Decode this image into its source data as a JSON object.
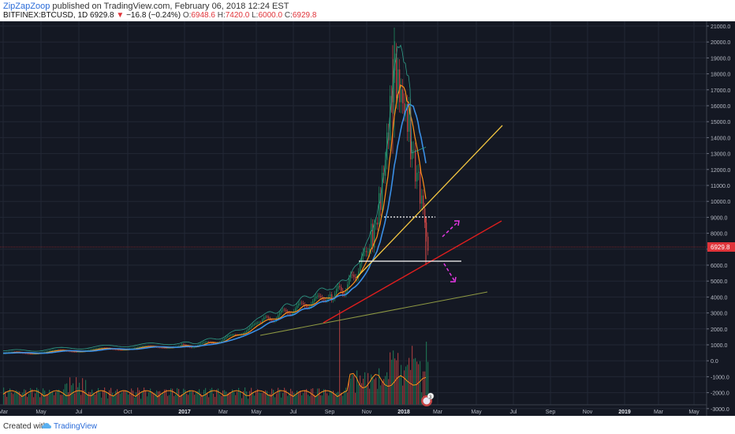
{
  "header": {
    "username": "ZipZapZoop",
    "published": "published on TradingView.com, February 06, 2018 12:24 EST",
    "symbol": "BITFINEX:BTCUSD, 1D",
    "last": "6929.8",
    "change": "−16.8 (−0.24%)",
    "o_label": "O:",
    "o_value": "6948.6",
    "h_label": "H:",
    "h_value": "7420.0",
    "l_label": "L:",
    "l_value": "6000.0",
    "c_label": "C:",
    "c_value": "6929.8"
  },
  "price_axis": {
    "labels": [
      "21000.0",
      "20000.0",
      "19000.0",
      "18000.0",
      "17000.0",
      "16000.0",
      "15000.0",
      "14000.0",
      "13000.0",
      "12000.0",
      "11000.0",
      "10000.0",
      "9000.0",
      "8000.0",
      "7000.0",
      "6000.0",
      "5000.0",
      "4000.0",
      "3000.0",
      "2000.0",
      "1000.0",
      "0.0",
      "-1000.0",
      "-2000.0",
      "-3000.0"
    ],
    "current_price_label": "6929.8"
  },
  "time_axis": {
    "labels": [
      "Mar",
      "May",
      "Jul",
      "Oct",
      "2017",
      "Mar",
      "May",
      "Jul",
      "Sep",
      "Nov",
      "2018",
      "Mar",
      "May",
      "Jul",
      "Sep",
      "Nov",
      "2019",
      "Mar",
      "May"
    ]
  },
  "colors": {
    "background": "#141823",
    "up": "#1f8a5f",
    "down": "#c64545",
    "ma_blue": "#3a8fe6",
    "ma_orange": "#ff8f1a",
    "ma_green": "#2fa08a",
    "trend_yellow": "#f5c842",
    "trend_red": "#e01e1e",
    "trend_olive": "#8f9a43",
    "arrow_magenta": "#e637e6"
  },
  "badge": {
    "count": "3"
  },
  "footer": {
    "created": "Created with",
    "brand": "TradingView"
  }
}
